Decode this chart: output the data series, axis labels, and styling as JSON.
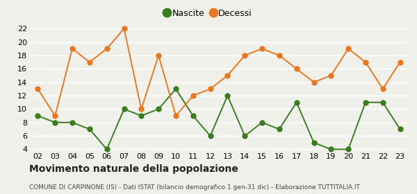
{
  "years": [
    "02",
    "03",
    "04",
    "05",
    "06",
    "07",
    "08",
    "09",
    "10",
    "11",
    "12",
    "13",
    "14",
    "15",
    "16",
    "17",
    "18",
    "19",
    "20",
    "21",
    "22",
    "23"
  ],
  "nascite": [
    9,
    8,
    8,
    7,
    4,
    10,
    9,
    10,
    13,
    9,
    6,
    12,
    6,
    8,
    7,
    11,
    5,
    4,
    4,
    11,
    11,
    7
  ],
  "decessi": [
    13,
    9,
    19,
    17,
    19,
    22,
    10,
    18,
    9,
    12,
    13,
    15,
    18,
    19,
    18,
    16,
    14,
    15,
    19,
    17,
    13,
    17
  ],
  "nascite_color": "#3a7d1e",
  "decessi_color": "#e87722",
  "title": "Movimento naturale della popolazione",
  "subtitle": "COMUNE DI CARPINONE (IS) - Dati ISTAT (bilancio demografico 1 gen-31 dic) - Elaborazione TUTTITALIA.IT",
  "legend_nascite": "Nascite",
  "legend_decessi": "Decessi",
  "ylim_min": 4,
  "ylim_max": 22,
  "yticks": [
    4,
    6,
    8,
    10,
    12,
    14,
    16,
    18,
    20,
    22
  ],
  "bg_color": "#f0f0eb",
  "grid_color": "#ffffff",
  "marker_size": 5,
  "line_width": 1.4,
  "title_fontsize": 10,
  "subtitle_fontsize": 6.5,
  "tick_fontsize": 8,
  "legend_fontsize": 9
}
